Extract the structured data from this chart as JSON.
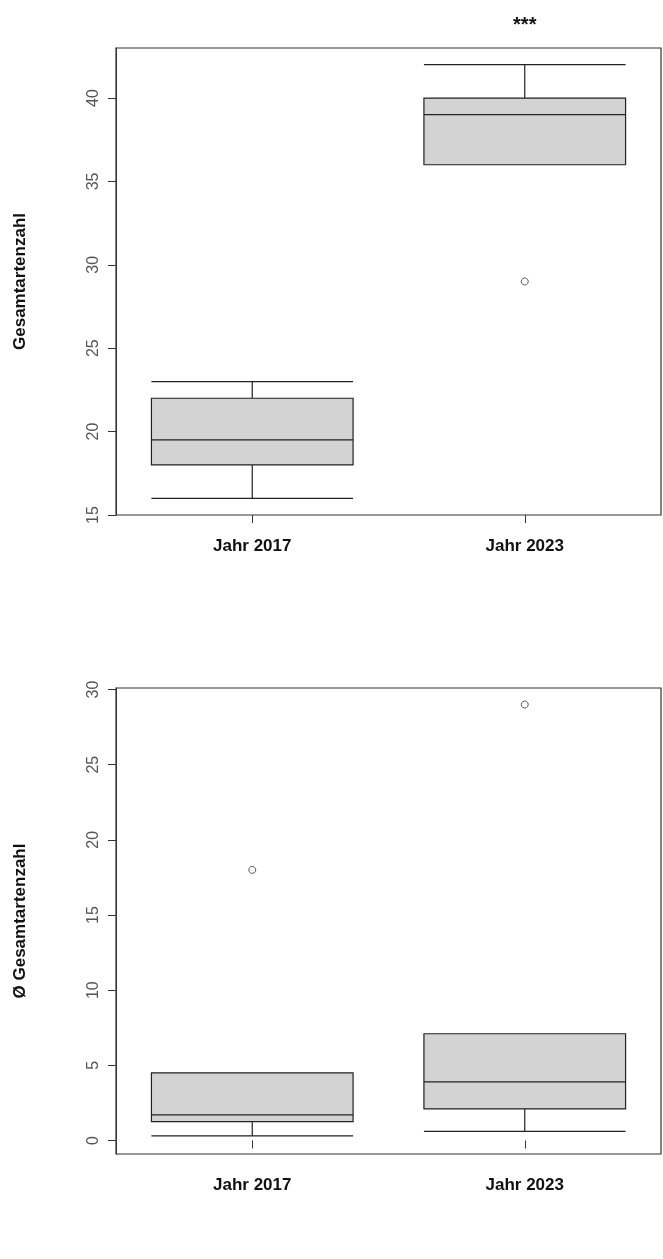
{
  "chart_data": [
    {
      "type": "box",
      "ylabel": "Gesamtartenzahl",
      "categories": [
        "Jahr 2017",
        "Jahr 2023"
      ],
      "ylim": [
        15,
        43
      ],
      "yticks": [
        15,
        20,
        25,
        30,
        35,
        40
      ],
      "grid": false,
      "marker": "circle",
      "annotations": [
        "***"
      ],
      "series": [
        {
          "color": "#d3d3d3",
          "boxes": [
            {
              "low": 16,
              "q1": 18,
              "median": 19.5,
              "q3": 22,
              "high": 23
            },
            {
              "low": 36,
              "q1": 36,
              "median": 39,
              "q3": 40,
              "high": 42,
              "outliers": [
                29
              ]
            }
          ]
        }
      ]
    },
    {
      "type": "box",
      "ylabel": "Ø Gesamtartenzahl",
      "categories": [
        "Jahr 2017",
        "Jahr 2023"
      ],
      "ylim": [
        -0.9,
        30.1
      ],
      "yticks": [
        0,
        5,
        10,
        15,
        20,
        25,
        30
      ],
      "grid": false,
      "marker": "circle",
      "series": [
        {
          "color": "#d3d3d3",
          "boxes": [
            {
              "low": 0.3,
              "q1": 1.25,
              "median": 1.7,
              "q3": 4.5,
              "high": 4.5,
              "outliers": [
                18
              ]
            },
            {
              "low": 0.6,
              "q1": 2.1,
              "median": 3.9,
              "q3": 7.1,
              "high": 7.1,
              "outliers": [
                29
              ]
            }
          ]
        }
      ]
    }
  ]
}
